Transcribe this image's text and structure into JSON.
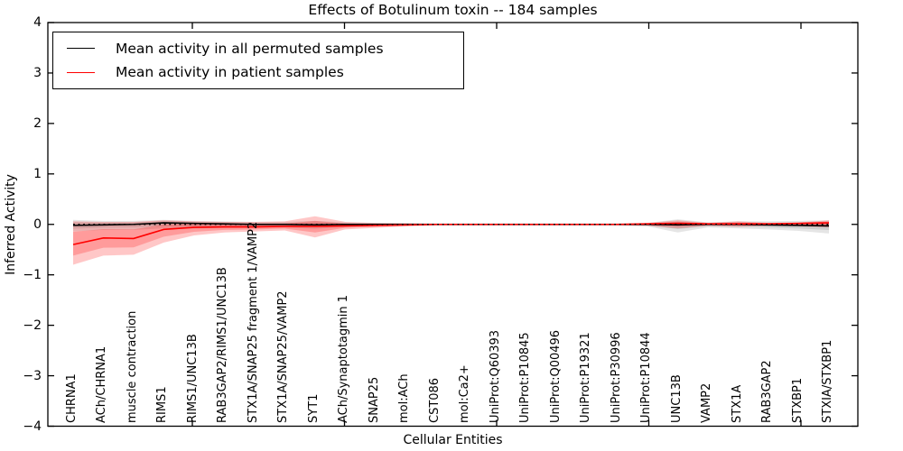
{
  "chart_data": {
    "type": "line",
    "title": "Effects of Botulinum toxin -- 184 samples",
    "xlabel": "Cellular Entities",
    "ylabel": "Inferred Activity",
    "ylim": [
      -4,
      4
    ],
    "yticks": [
      4,
      3,
      2,
      1,
      0,
      -1,
      -2,
      -3,
      -4
    ],
    "grid": false,
    "legend_position": "upper left",
    "frame_color": "#000000",
    "background_color": "#ffffff",
    "categories": [
      "CHRNA1",
      "ACh/CHRNA1",
      "muscle contraction",
      "RIMS1",
      "RIMS1/UNC13B",
      "RAB3GAP2/RIMS1/UNC13B",
      "STX1A/SNAP25 fragment 1/VAMP2",
      "STX1A/SNAP25/VAMP2",
      "SYT1",
      "ACh/Synaptotagmin 1",
      "SNAP25",
      "mol:ACh",
      "CST086",
      "mol:Ca2+",
      "UniProt:Q60393",
      "UniProt:P10845",
      "UniProt:Q00496",
      "UniProt:P19321",
      "UniProt:P30996",
      "UniProt:P10844",
      "UNC13B",
      "VAMP2",
      "STX1A",
      "RAB3GAP2",
      "STXBP1",
      "STXIA/STXBP1"
    ],
    "reference_line": {
      "y": 0,
      "style": "dotted",
      "color": "#000000"
    },
    "series": [
      {
        "name": "Mean activity in all permuted samples",
        "color": "#000000",
        "band_fill": "rgba(0,0,0,0.10)",
        "values": [
          -0.02,
          -0.01,
          0.0,
          0.03,
          0.02,
          0.01,
          0.0,
          0.0,
          -0.01,
          0.0,
          0.0,
          0.0,
          0.0,
          0.0,
          0.0,
          0.0,
          0.0,
          0.0,
          0.0,
          0.0,
          -0.01,
          0.0,
          0.0,
          -0.01,
          -0.02,
          -0.03
        ],
        "band_upper": [
          0.09,
          0.07,
          0.07,
          0.09,
          0.07,
          0.06,
          0.05,
          0.05,
          0.07,
          0.04,
          0.03,
          0.03,
          0.02,
          0.02,
          0.02,
          0.02,
          0.02,
          0.02,
          0.02,
          0.03,
          0.1,
          0.04,
          0.06,
          0.06,
          0.07,
          0.08
        ],
        "band_lower": [
          -0.14,
          -0.11,
          -0.11,
          -0.08,
          -0.08,
          -0.07,
          -0.06,
          -0.06,
          -0.09,
          -0.05,
          -0.04,
          -0.03,
          -0.03,
          -0.03,
          -0.03,
          -0.03,
          -0.03,
          -0.03,
          -0.03,
          -0.04,
          -0.16,
          -0.06,
          -0.08,
          -0.1,
          -0.13,
          -0.18
        ]
      },
      {
        "name": "Mean activity in patient samples",
        "color": "#ff0000",
        "band_fill": "rgba(255,0,0,0.22)",
        "values": [
          -0.4,
          -0.27,
          -0.28,
          -0.1,
          -0.06,
          -0.05,
          -0.05,
          -0.04,
          -0.04,
          -0.03,
          -0.02,
          -0.01,
          0.0,
          0.0,
          0.0,
          0.0,
          0.0,
          0.0,
          0.0,
          0.01,
          0.02,
          0.01,
          0.01,
          0.01,
          0.02,
          0.03
        ],
        "band_upper": [
          0.06,
          0.05,
          0.05,
          0.08,
          0.06,
          0.05,
          0.05,
          0.06,
          0.16,
          0.05,
          0.03,
          0.02,
          0.01,
          0.01,
          0.01,
          0.01,
          0.01,
          0.01,
          0.01,
          0.03,
          0.08,
          0.03,
          0.06,
          0.03,
          0.04,
          0.08
        ],
        "band_lower": [
          -0.8,
          -0.62,
          -0.6,
          -0.36,
          -0.22,
          -0.16,
          -0.14,
          -0.12,
          -0.26,
          -0.1,
          -0.07,
          -0.04,
          -0.02,
          -0.02,
          -0.02,
          -0.02,
          -0.02,
          -0.02,
          -0.02,
          -0.03,
          -0.08,
          -0.03,
          -0.05,
          -0.03,
          -0.04,
          -0.06
        ]
      }
    ]
  }
}
